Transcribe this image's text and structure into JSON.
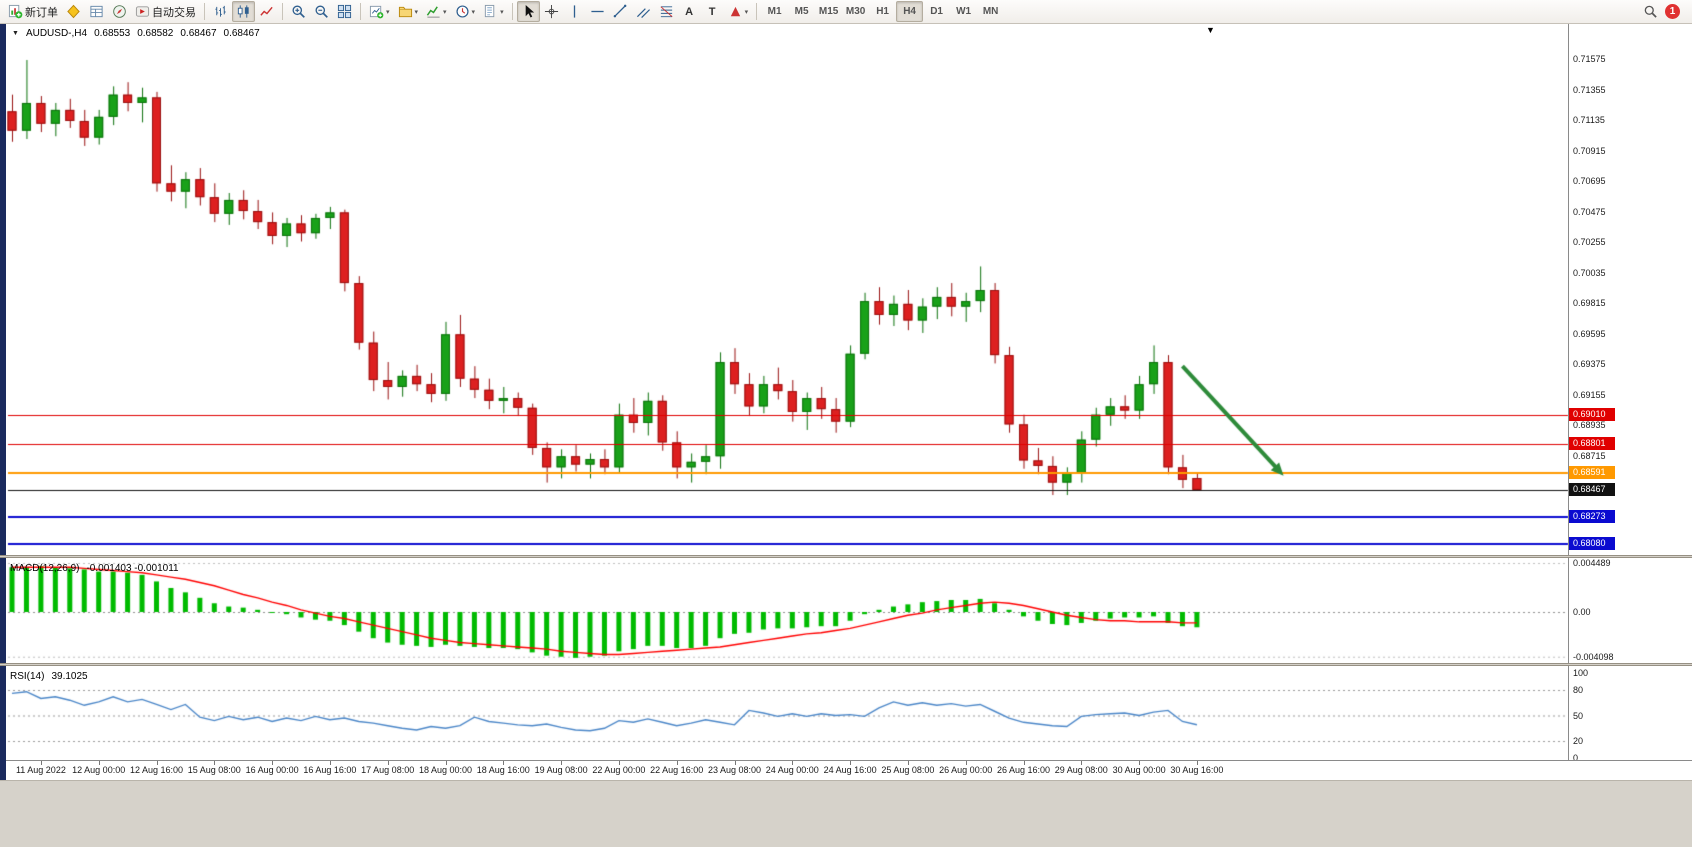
{
  "window": {
    "title_symbol": "AUDUSD-,H4",
    "ohlc_open": "0.68553",
    "ohlc_high": "0.68582",
    "ohlc_low": "0.68467",
    "ohlc_close": "0.68467"
  },
  "toolbar": {
    "badge": "1",
    "timeframes": [
      "M1",
      "M5",
      "M15",
      "M30",
      "H1",
      "H4",
      "D1",
      "W1",
      "MN"
    ],
    "active_timeframe": "H4",
    "groups": [
      {
        "items": [
          {
            "name": "new-order",
            "icon": "new-order",
            "label": "新订单"
          },
          {
            "name": "market-watch",
            "icon": "market-watch"
          },
          {
            "name": "data-window",
            "icon": "data-window"
          },
          {
            "name": "navigator",
            "icon": "navigator"
          },
          {
            "name": "autotrading",
            "icon": "autotrading",
            "label": "自动交易"
          }
        ]
      },
      {
        "items": [
          {
            "name": "bar-chart",
            "icon": "bar-chart"
          },
          {
            "name": "candle-chart",
            "icon": "candle-chart",
            "active": true
          },
          {
            "name": "line-chart",
            "icon": "line-chart"
          }
        ]
      },
      {
        "items": [
          {
            "name": "zoom-in",
            "icon": "zoom-in"
          },
          {
            "name": "zoom-out",
            "icon": "zoom-out"
          },
          {
            "name": "tile-windows",
            "icon": "tile-windows"
          }
        ]
      },
      {
        "items": [
          {
            "name": "new-chart",
            "icon": "new-chart",
            "caret": true
          },
          {
            "name": "profiles",
            "icon": "profiles",
            "caret": true
          },
          {
            "name": "indicators",
            "icon": "indicators",
            "caret": true
          },
          {
            "name": "periods",
            "icon": "periods",
            "caret": true
          },
          {
            "name": "templates",
            "icon": "templates",
            "caret": true
          }
        ]
      },
      {
        "items": [
          {
            "name": "cursor",
            "icon": "cursor",
            "active": true
          },
          {
            "name": "crosshair",
            "icon": "crosshair"
          },
          {
            "name": "vertical-line",
            "icon": "vertical-line"
          },
          {
            "name": "horizontal-line",
            "icon": "horizontal-line"
          },
          {
            "name": "trendline",
            "icon": "trendline"
          },
          {
            "name": "equidistant-channel",
            "icon": "channel"
          },
          {
            "name": "fibonacci",
            "icon": "fibonacci"
          },
          {
            "name": "draw-text",
            "char": "A"
          },
          {
            "name": "draw-text-label",
            "char": "T"
          },
          {
            "name": "arrows",
            "icon": "arrows",
            "caret": true
          }
        ]
      }
    ]
  },
  "chart_data": {
    "type": "candlestick",
    "symbol": "AUDUSD",
    "timeframe": "H4",
    "price_axis": {
      "top_price": 0.7183,
      "bottom_price": 0.6799,
      "ticks": [
        "0.71575",
        "0.71355",
        "0.71135",
        "0.70915",
        "0.70695",
        "0.70475",
        "0.70255",
        "0.70035",
        "0.69815",
        "0.69595",
        "0.69375",
        "0.69155",
        "0.68935",
        "0.68715"
      ]
    },
    "levels": [
      {
        "price": 0.6901,
        "label": "0.69010",
        "color": "#e00000",
        "width": 1,
        "name": "resistance-1"
      },
      {
        "price": 0.68801,
        "label": "0.68801",
        "color": "#e00000",
        "width": 1,
        "name": "resistance-2"
      },
      {
        "price": 0.68591,
        "label": "0.68591",
        "color": "#ff9900",
        "width": 2,
        "name": "support-orange"
      },
      {
        "price": 0.68467,
        "label": "0.68467",
        "color": "#111111",
        "width": 1,
        "name": "bid-price"
      },
      {
        "price": 0.68273,
        "label": "0.68273",
        "color": "#0b0bd0",
        "width": 2,
        "name": "support-blue-1"
      },
      {
        "price": 0.6808,
        "label": "0.68080",
        "color": "#0b0bd0",
        "width": 2,
        "name": "support-blue-2"
      }
    ],
    "arrow": {
      "from": {
        "candle": 81,
        "price": 0.6936
      },
      "to": {
        "candle": 88,
        "price": 0.6857
      },
      "color": "#2e8b3a"
    },
    "time_labels": [
      {
        "text": "11 Aug 2022",
        "candle": 2
      },
      {
        "text": "12 Aug 00:00",
        "candle": 6
      },
      {
        "text": "12 Aug 16:00",
        "candle": 10
      },
      {
        "text": "15 Aug 08:00",
        "candle": 14
      },
      {
        "text": "16 Aug 00:00",
        "candle": 18
      },
      {
        "text": "16 Aug 16:00",
        "candle": 22
      },
      {
        "text": "17 Aug 08:00",
        "candle": 26
      },
      {
        "text": "18 Aug 00:00",
        "candle": 30
      },
      {
        "text": "18 Aug 16:00",
        "candle": 34
      },
      {
        "text": "19 Aug 08:00",
        "candle": 38
      },
      {
        "text": "22 Aug 00:00",
        "candle": 42
      },
      {
        "text": "22 Aug 16:00",
        "candle": 46
      },
      {
        "text": "23 Aug 08:00",
        "candle": 50
      },
      {
        "text": "24 Aug 00:00",
        "candle": 54
      },
      {
        "text": "24 Aug 16:00",
        "candle": 58
      },
      {
        "text": "25 Aug 08:00",
        "candle": 62
      },
      {
        "text": "26 Aug 00:00",
        "candle": 66
      },
      {
        "text": "26 Aug 16:00",
        "candle": 70
      },
      {
        "text": "29 Aug 08:00",
        "candle": 74
      },
      {
        "text": "30 Aug 00:00",
        "candle": 78
      },
      {
        "text": "30 Aug 16:00",
        "candle": 82
      }
    ],
    "candles": [
      [
        0.712,
        0.7132,
        0.7098,
        0.7106
      ],
      [
        0.7106,
        0.7157,
        0.71,
        0.7126
      ],
      [
        0.7126,
        0.7131,
        0.7105,
        0.7111
      ],
      [
        0.7111,
        0.7126,
        0.7102,
        0.7121
      ],
      [
        0.7121,
        0.7129,
        0.7108,
        0.7113
      ],
      [
        0.7113,
        0.7121,
        0.7095,
        0.7101
      ],
      [
        0.7101,
        0.7121,
        0.7096,
        0.7116
      ],
      [
        0.7116,
        0.7138,
        0.711,
        0.7132
      ],
      [
        0.7132,
        0.7141,
        0.712,
        0.7126
      ],
      [
        0.7126,
        0.7137,
        0.7112,
        0.713
      ],
      [
        0.713,
        0.7134,
        0.7062,
        0.7068
      ],
      [
        0.7068,
        0.7081,
        0.7055,
        0.7062
      ],
      [
        0.7062,
        0.7076,
        0.705,
        0.7071
      ],
      [
        0.7071,
        0.7079,
        0.7052,
        0.7058
      ],
      [
        0.7058,
        0.7068,
        0.704,
        0.7046
      ],
      [
        0.7046,
        0.7061,
        0.7038,
        0.7056
      ],
      [
        0.7056,
        0.7063,
        0.7042,
        0.7048
      ],
      [
        0.7048,
        0.7056,
        0.7035,
        0.704
      ],
      [
        0.704,
        0.7047,
        0.7024,
        0.703
      ],
      [
        0.703,
        0.7043,
        0.7022,
        0.7039
      ],
      [
        0.7039,
        0.7045,
        0.7026,
        0.7032
      ],
      [
        0.7032,
        0.7046,
        0.7028,
        0.7043
      ],
      [
        0.7043,
        0.7051,
        0.7035,
        0.7047
      ],
      [
        0.7047,
        0.7049,
        0.699,
        0.6996
      ],
      [
        0.6996,
        0.7001,
        0.6948,
        0.6953
      ],
      [
        0.6953,
        0.6961,
        0.6918,
        0.6926
      ],
      [
        0.6926,
        0.6939,
        0.6912,
        0.6921
      ],
      [
        0.6921,
        0.6933,
        0.6914,
        0.6929
      ],
      [
        0.6929,
        0.6937,
        0.6918,
        0.6923
      ],
      [
        0.6923,
        0.6931,
        0.691,
        0.6916
      ],
      [
        0.6916,
        0.6968,
        0.6911,
        0.6959
      ],
      [
        0.6959,
        0.6973,
        0.6921,
        0.6927
      ],
      [
        0.6927,
        0.6936,
        0.6913,
        0.6919
      ],
      [
        0.6919,
        0.6927,
        0.6905,
        0.6911
      ],
      [
        0.6911,
        0.6921,
        0.6902,
        0.6913
      ],
      [
        0.6913,
        0.6917,
        0.69,
        0.6906
      ],
      [
        0.6906,
        0.6909,
        0.6872,
        0.6877
      ],
      [
        0.6877,
        0.6881,
        0.6852,
        0.6863
      ],
      [
        0.6863,
        0.6876,
        0.6855,
        0.6871
      ],
      [
        0.6871,
        0.6879,
        0.686,
        0.6865
      ],
      [
        0.6865,
        0.6873,
        0.6855,
        0.6869
      ],
      [
        0.6869,
        0.6876,
        0.6858,
        0.6863
      ],
      [
        0.6863,
        0.6909,
        0.6859,
        0.6901
      ],
      [
        0.6901,
        0.6913,
        0.6888,
        0.6895
      ],
      [
        0.6895,
        0.6917,
        0.6886,
        0.6911
      ],
      [
        0.6911,
        0.6915,
        0.6875,
        0.6881
      ],
      [
        0.6881,
        0.6889,
        0.6855,
        0.6863
      ],
      [
        0.6863,
        0.6873,
        0.6852,
        0.6867
      ],
      [
        0.6867,
        0.6879,
        0.6858,
        0.6871
      ],
      [
        0.6871,
        0.6946,
        0.6862,
        0.6939
      ],
      [
        0.6939,
        0.6949,
        0.6916,
        0.6923
      ],
      [
        0.6923,
        0.6931,
        0.69,
        0.6907
      ],
      [
        0.6907,
        0.6929,
        0.6902,
        0.6923
      ],
      [
        0.6923,
        0.6935,
        0.6912,
        0.6918
      ],
      [
        0.6918,
        0.6926,
        0.6896,
        0.6903
      ],
      [
        0.6903,
        0.6917,
        0.689,
        0.6913
      ],
      [
        0.6913,
        0.6921,
        0.6898,
        0.6905
      ],
      [
        0.6905,
        0.6913,
        0.6888,
        0.6896
      ],
      [
        0.6896,
        0.6951,
        0.6892,
        0.6945
      ],
      [
        0.6945,
        0.6989,
        0.6941,
        0.6983
      ],
      [
        0.6983,
        0.6993,
        0.6966,
        0.6973
      ],
      [
        0.6973,
        0.6987,
        0.6965,
        0.6981
      ],
      [
        0.6981,
        0.6991,
        0.6962,
        0.6969
      ],
      [
        0.6969,
        0.6985,
        0.696,
        0.6979
      ],
      [
        0.6979,
        0.6993,
        0.697,
        0.6986
      ],
      [
        0.6986,
        0.6996,
        0.6972,
        0.6979
      ],
      [
        0.6979,
        0.6989,
        0.6968,
        0.6983
      ],
      [
        0.6983,
        0.7008,
        0.6975,
        0.6991
      ],
      [
        0.6991,
        0.6996,
        0.6938,
        0.6944
      ],
      [
        0.6944,
        0.695,
        0.6888,
        0.6894
      ],
      [
        0.6894,
        0.6901,
        0.6862,
        0.6868
      ],
      [
        0.6868,
        0.6877,
        0.6858,
        0.6864
      ],
      [
        0.6864,
        0.6871,
        0.6843,
        0.6852
      ],
      [
        0.6852,
        0.6863,
        0.6843,
        0.6859
      ],
      [
        0.6859,
        0.6889,
        0.6852,
        0.6883
      ],
      [
        0.6883,
        0.6906,
        0.6878,
        0.6901
      ],
      [
        0.6901,
        0.6913,
        0.6893,
        0.6907
      ],
      [
        0.6907,
        0.6915,
        0.6898,
        0.6904
      ],
      [
        0.6904,
        0.6929,
        0.6898,
        0.6923
      ],
      [
        0.6923,
        0.6951,
        0.6916,
        0.6939
      ],
      [
        0.6939,
        0.6944,
        0.6858,
        0.6863
      ],
      [
        0.6863,
        0.6872,
        0.6848,
        0.6854
      ],
      [
        0.68553,
        0.68582,
        0.68467,
        0.68467
      ]
    ],
    "macd": {
      "title": "MACD(12,26,9)",
      "values_text": "-0.001403 -0.001011",
      "scale": [
        {
          "text": "0.004489",
          "value": 0.004489
        },
        {
          "text": "0.00",
          "value": 0
        },
        {
          "text": "-0.004098",
          "value": -0.004098
        }
      ],
      "main": [
        0.0041,
        0.0041,
        0.0042,
        0.0041,
        0.004,
        0.0039,
        0.0037,
        0.0037,
        0.0036,
        0.0034,
        0.0028,
        0.0022,
        0.0018,
        0.0013,
        0.0008,
        0.0005,
        0.0004,
        0.0002,
        0.0,
        -0.0002,
        -0.0005,
        -0.0007,
        -0.0008,
        -0.0012,
        -0.0018,
        -0.0024,
        -0.0028,
        -0.003,
        -0.0031,
        -0.0032,
        -0.003,
        -0.0031,
        -0.0032,
        -0.0033,
        -0.0033,
        -0.0034,
        -0.0037,
        -0.004,
        -0.0041,
        -0.0042,
        -0.0041,
        -0.004,
        -0.0036,
        -0.0034,
        -0.0031,
        -0.0031,
        -0.0033,
        -0.0033,
        -0.0031,
        -0.0024,
        -0.002,
        -0.0019,
        -0.0016,
        -0.0015,
        -0.0015,
        -0.0014,
        -0.0013,
        -0.0013,
        -0.0008,
        -0.0002,
        0.0002,
        0.0005,
        0.0007,
        0.0009,
        0.001,
        0.0011,
        0.0011,
        0.0012,
        0.0008,
        0.0002,
        -0.0004,
        -0.0008,
        -0.0011,
        -0.0012,
        -0.001,
        -0.0008,
        -0.0006,
        -0.0005,
        -0.0005,
        -0.0004,
        -0.001,
        -0.0013,
        -0.0014
      ],
      "signal": [
        0.0041,
        0.0041,
        0.0041,
        0.0041,
        0.0041,
        0.004,
        0.0039,
        0.0038,
        0.0037,
        0.0036,
        0.0034,
        0.0032,
        0.003,
        0.0027,
        0.0024,
        0.002,
        0.0016,
        0.0013,
        0.0009,
        0.0006,
        0.0002,
        -0.0001,
        -0.0004,
        -0.0006,
        -0.0009,
        -0.0012,
        -0.0015,
        -0.0018,
        -0.0021,
        -0.0024,
        -0.0026,
        -0.0028,
        -0.0029,
        -0.003,
        -0.0031,
        -0.0032,
        -0.0033,
        -0.0034,
        -0.0036,
        -0.0037,
        -0.0038,
        -0.0039,
        -0.0039,
        -0.0038,
        -0.0037,
        -0.0036,
        -0.0035,
        -0.0034,
        -0.0033,
        -0.0032,
        -0.003,
        -0.0028,
        -0.0026,
        -0.0024,
        -0.0022,
        -0.002,
        -0.0019,
        -0.0017,
        -0.0015,
        -0.0012,
        -0.0009,
        -0.0006,
        -0.0003,
        -0.0001,
        0.0002,
        0.0004,
        0.0006,
        0.0008,
        0.0009,
        0.0008,
        0.0006,
        0.0003,
        0.0,
        -0.0003,
        -0.0005,
        -0.0007,
        -0.0008,
        -0.0008,
        -0.0009,
        -0.0009,
        -0.0009,
        -0.001,
        -0.001
      ],
      "histogram_color": "#00bb00",
      "signal_color": "#ff0000"
    },
    "rsi": {
      "title": "RSI(14)",
      "value_text": "39.1025",
      "scale": [
        100,
        80,
        50,
        20,
        0
      ],
      "dashed_levels": [
        80,
        50,
        20
      ],
      "line_color": "#4a86c8",
      "values": [
        76,
        78,
        70,
        72,
        68,
        62,
        66,
        72,
        66,
        69,
        63,
        57,
        63,
        48,
        44,
        49,
        45,
        48,
        43,
        47,
        44,
        49,
        45,
        47,
        43,
        41,
        38,
        35,
        33,
        37,
        35,
        38,
        48,
        43,
        41,
        39,
        38,
        40,
        36,
        33,
        32,
        35,
        44,
        42,
        46,
        42,
        38,
        41,
        45,
        42,
        39,
        56,
        53,
        49,
        52,
        49,
        52,
        50,
        51,
        49,
        59,
        66,
        62,
        65,
        62,
        64,
        61,
        63,
        55,
        47,
        42,
        40,
        38,
        37,
        49,
        51,
        52,
        53,
        50,
        54,
        56,
        43,
        39.1
      ]
    },
    "colors": {
      "candle_up": "#19a119",
      "candle_up_border": "#0c720c",
      "candle_down": "#dd2020",
      "candle_down_border": "#991111",
      "background": "#ffffff"
    }
  }
}
